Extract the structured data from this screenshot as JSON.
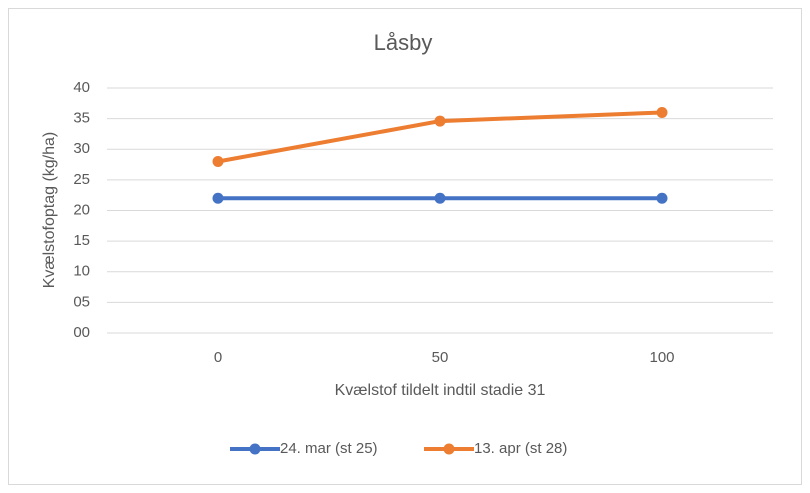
{
  "chart_data": {
    "type": "line",
    "title": "Låsby",
    "x_label": "Kvælstof tildelt indtil stadie 31",
    "y_label": "Kvælstofoptag (kg/ha)",
    "categories": [
      "0",
      "50",
      "100"
    ],
    "series": [
      {
        "name": "24. mar (st 25)",
        "color": "#4472c4",
        "values": [
          22,
          22,
          22
        ]
      },
      {
        "name": "13. apr (st 28)",
        "color": "#ed7d31",
        "values": [
          28,
          34.6,
          36
        ]
      }
    ],
    "ylim": [
      0,
      40
    ],
    "yticks": [
      {
        "value": 0,
        "label": "00"
      },
      {
        "value": 5,
        "label": "05"
      },
      10,
      15,
      20,
      25,
      30,
      35,
      40
    ],
    "grid": true,
    "legend": "bottom"
  }
}
